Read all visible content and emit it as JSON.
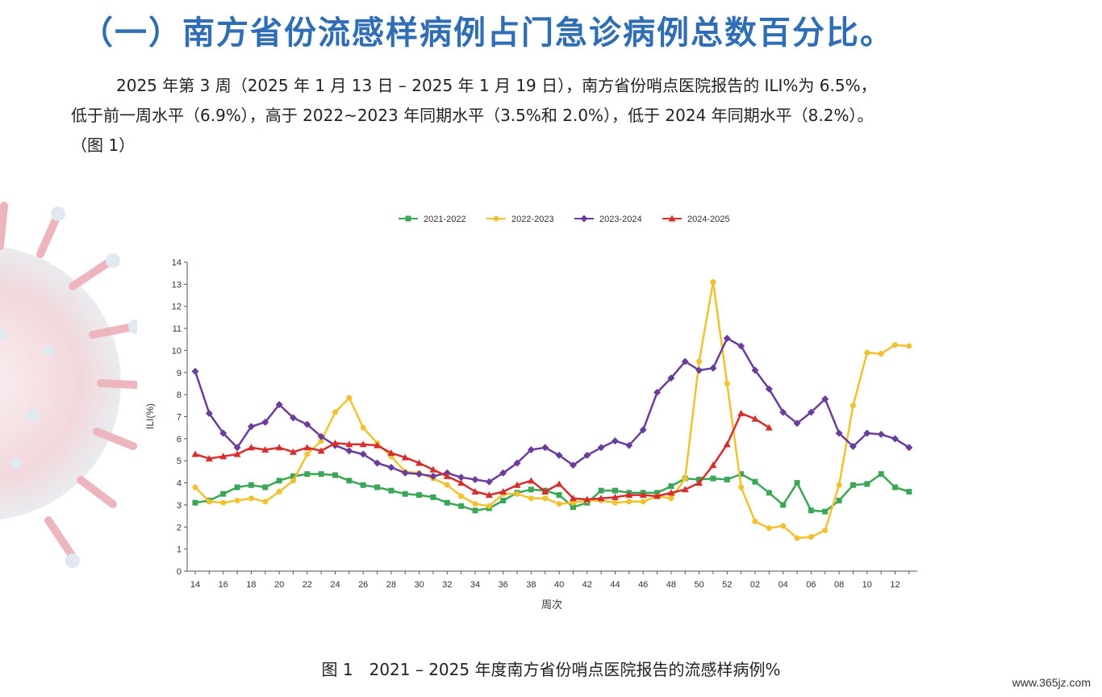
{
  "header": {
    "title": "（一）南方省份流感样病例占门急诊病例总数百分比。"
  },
  "paragraph": {
    "line1": "2025 年第 3 周（2025 年 1 月 13 日 – 2025 年 1 月 19 日），南方省份哨点医院报告的 ILI%为 6.5%，",
    "line2": "低于前一周水平（6.9%），高于 2022~2023 年同期水平（3.5%和 2.0%），低于 2024 年同期水平（8.2%）。",
    "line3": "（图 1）"
  },
  "caption": "图 1　2021 – 2025 年度南方省份哨点医院报告的流感样病例%",
  "watermark": "www.365jz.com",
  "chart_data": {
    "type": "line",
    "ylabel": "ILI(%)",
    "xlabel": "周次",
    "ylim": [
      0,
      14
    ],
    "yticks": [
      0,
      1,
      2,
      3,
      4,
      5,
      6,
      7,
      8,
      9,
      10,
      11,
      12,
      13,
      14
    ],
    "x": [
      "14",
      "15",
      "16",
      "17",
      "18",
      "19",
      "20",
      "21",
      "22",
      "23",
      "24",
      "25",
      "26",
      "27",
      "28",
      "29",
      "30",
      "31",
      "32",
      "33",
      "34",
      "35",
      "36",
      "37",
      "38",
      "39",
      "40",
      "41",
      "42",
      "43",
      "44",
      "45",
      "46",
      "47",
      "48",
      "49",
      "50",
      "51",
      "52",
      "01",
      "02",
      "03",
      "04",
      "05",
      "06",
      "07",
      "08",
      "09",
      "10",
      "11",
      "12",
      "13"
    ],
    "xtick_labels": [
      "14",
      "16",
      "18",
      "20",
      "22",
      "24",
      "26",
      "28",
      "30",
      "32",
      "34",
      "36",
      "38",
      "40",
      "42",
      "44",
      "46",
      "48",
      "50",
      "52",
      "02",
      "04",
      "06",
      "08",
      "10",
      "12"
    ],
    "legend_position": "top",
    "grid": false,
    "series": [
      {
        "name": "2021-2022",
        "color": "#3aa757",
        "marker": "square",
        "values": [
          3.1,
          3.2,
          3.5,
          3.8,
          3.9,
          3.8,
          4.1,
          4.3,
          4.4,
          4.4,
          4.35,
          4.1,
          3.9,
          3.8,
          3.65,
          3.5,
          3.45,
          3.35,
          3.1,
          2.95,
          2.75,
          2.85,
          3.2,
          3.55,
          3.7,
          3.65,
          3.45,
          2.9,
          3.1,
          3.65,
          3.65,
          3.55,
          3.55,
          3.55,
          3.85,
          4.2,
          4.15,
          4.2,
          4.15,
          4.4,
          4.05,
          3.55,
          3.0,
          4.0,
          2.75,
          2.7,
          3.2,
          3.9,
          3.95,
          4.4,
          3.8,
          3.6
        ]
      },
      {
        "name": "2022-2023",
        "color": "#f2c12e",
        "marker": "circle",
        "values": [
          3.8,
          3.15,
          3.1,
          3.2,
          3.3,
          3.15,
          3.6,
          4.1,
          5.3,
          5.9,
          7.2,
          7.85,
          6.5,
          5.8,
          5.2,
          4.5,
          4.45,
          4.2,
          3.9,
          3.4,
          3.05,
          2.95,
          3.5,
          3.5,
          3.3,
          3.3,
          3.05,
          3.1,
          3.2,
          3.2,
          3.1,
          3.15,
          3.15,
          3.4,
          3.3,
          4.2,
          9.5,
          13.1,
          8.5,
          3.8,
          2.25,
          1.95,
          2.05,
          1.5,
          1.55,
          1.85,
          3.9,
          7.5,
          9.9,
          9.85,
          10.25,
          10.2
        ]
      },
      {
        "name": "2023-2024",
        "color": "#6a3d9a",
        "marker": "diamond",
        "values": [
          9.05,
          7.15,
          6.25,
          5.6,
          6.55,
          6.75,
          7.55,
          6.95,
          6.65,
          6.1,
          5.7,
          5.45,
          5.3,
          4.9,
          4.7,
          4.45,
          4.4,
          4.3,
          4.45,
          4.25,
          4.15,
          4.05,
          4.45,
          4.9,
          5.5,
          5.6,
          5.25,
          4.8,
          5.25,
          5.6,
          5.9,
          5.7,
          6.4,
          8.1,
          8.75,
          9.5,
          9.1,
          9.2,
          10.55,
          10.2,
          9.1,
          8.25,
          7.2,
          6.7,
          7.2,
          7.8,
          6.25,
          5.65,
          6.25,
          6.2,
          6.0,
          5.6
        ]
      },
      {
        "name": "2024-2025",
        "color": "#d62d2d",
        "marker": "triangle",
        "values": [
          5.3,
          5.1,
          5.2,
          5.3,
          5.6,
          5.5,
          5.6,
          5.4,
          5.6,
          5.45,
          5.8,
          5.75,
          5.75,
          5.7,
          5.35,
          5.15,
          4.9,
          4.6,
          4.3,
          4.0,
          3.6,
          3.45,
          3.6,
          3.9,
          4.1,
          3.6,
          3.95,
          3.3,
          3.25,
          3.3,
          3.35,
          3.45,
          3.45,
          3.4,
          3.55,
          3.7,
          4.0,
          4.8,
          5.75,
          7.15,
          6.9,
          6.5,
          null,
          null,
          null,
          null,
          null,
          null,
          null,
          null,
          null,
          null
        ]
      }
    ]
  }
}
